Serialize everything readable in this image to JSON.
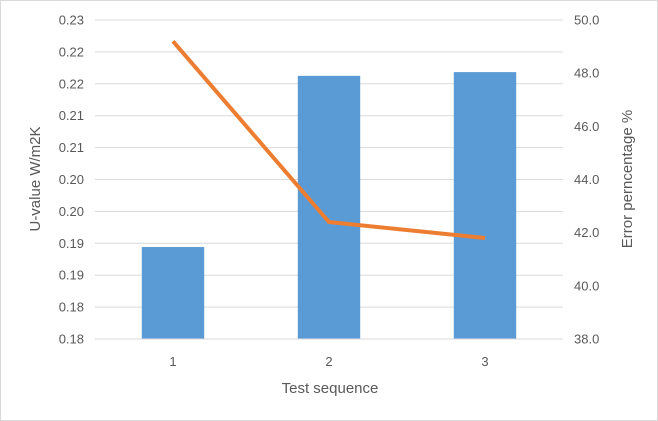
{
  "chart_data": {
    "type": "bar+line",
    "title": "",
    "categories": [
      "1",
      "2",
      "3"
    ],
    "xlabel": "Test sequence",
    "ylabel": "U-value W/m2K",
    "y2label": "Error perncentage %",
    "ylim": [
      0.175,
      0.235
    ],
    "yticks": [
      "0.18",
      "0.18",
      "0.19",
      "0.19",
      "0.20",
      "0.20",
      "0.21",
      "0.21",
      "0.22",
      "0.22",
      "0.23"
    ],
    "y2lim": [
      38,
      50
    ],
    "y2ticks": [
      "38.0",
      "40.0",
      "42.0",
      "44.0",
      "46.0",
      "48.0",
      "50.0"
    ],
    "grid": true,
    "legend": "none",
    "series": [
      {
        "type": "bar",
        "axis": "left",
        "color": "#5b9bd5",
        "values": [
          0.1923,
          0.2245,
          0.2252
        ]
      },
      {
        "type": "line",
        "axis": "right",
        "color": "#ed7d31",
        "values": [
          49.2,
          42.4,
          41.8
        ]
      }
    ]
  }
}
